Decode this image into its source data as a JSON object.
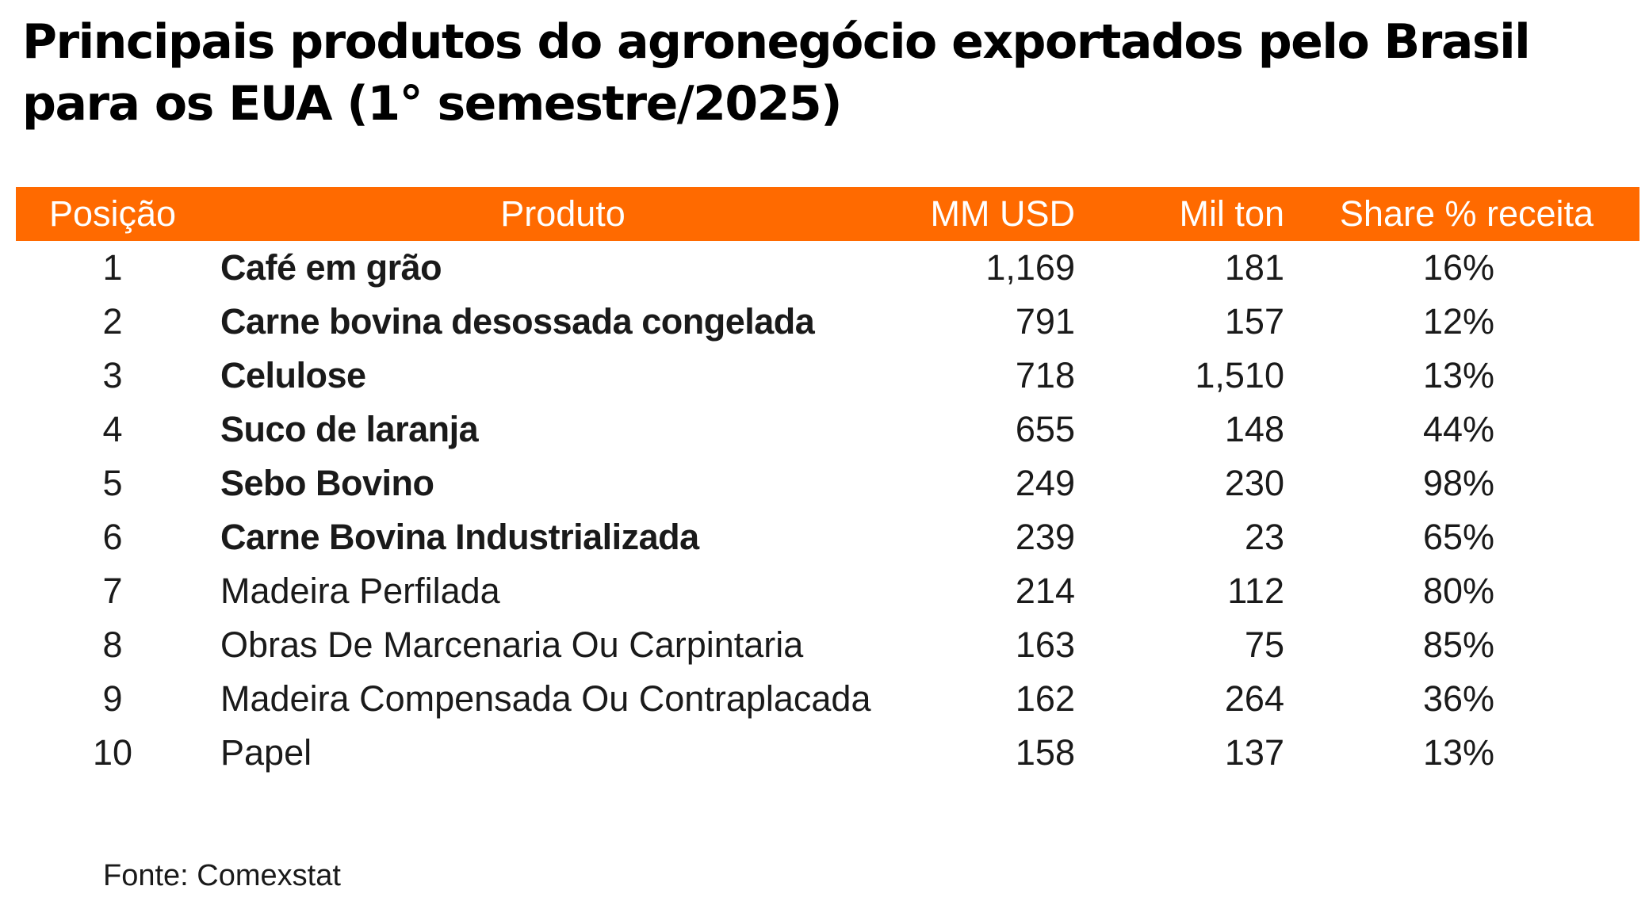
{
  "title": "Principais produtos do agronegócio exportados pelo Brasil para os EUA (1° semestre/2025)",
  "colors": {
    "header_bg": "#ff6a00",
    "header_text": "#ffffff"
  },
  "chart_data": {
    "type": "table",
    "columns": [
      "Posição",
      "Produto",
      "MM USD",
      "Mil ton",
      "Share % receita"
    ],
    "rows": [
      {
        "pos": "1",
        "produto": "Café em grão",
        "usd": "1,169",
        "ton": "181",
        "share": "16%",
        "bold": true
      },
      {
        "pos": "2",
        "produto": "Carne bovina desossada congelada",
        "usd": "791",
        "ton": "157",
        "share": "12%",
        "bold": true
      },
      {
        "pos": "3",
        "produto": "Celulose",
        "usd": "718",
        "ton": "1,510",
        "share": "13%",
        "bold": true
      },
      {
        "pos": "4",
        "produto": "Suco de laranja",
        "usd": "655",
        "ton": "148",
        "share": "44%",
        "bold": true
      },
      {
        "pos": "5",
        "produto": "Sebo Bovino",
        "usd": "249",
        "ton": "230",
        "share": "98%",
        "bold": true
      },
      {
        "pos": "6",
        "produto": "Carne Bovina Industrializada",
        "usd": "239",
        "ton": "23",
        "share": "65%",
        "bold": true
      },
      {
        "pos": "7",
        "produto": "Madeira Perfilada",
        "usd": "214",
        "ton": "112",
        "share": "80%",
        "bold": false
      },
      {
        "pos": "8",
        "produto": "Obras De Marcenaria Ou Carpintaria",
        "usd": "163",
        "ton": "75",
        "share": "85%",
        "bold": false
      },
      {
        "pos": "9",
        "produto": "Madeira Compensada Ou Contraplacada",
        "usd": "162",
        "ton": "264",
        "share": "36%",
        "bold": false
      },
      {
        "pos": "10",
        "produto": "Papel",
        "usd": "158",
        "ton": "137",
        "share": "13%",
        "bold": false
      }
    ]
  },
  "footer": "Fonte: Comexstat"
}
